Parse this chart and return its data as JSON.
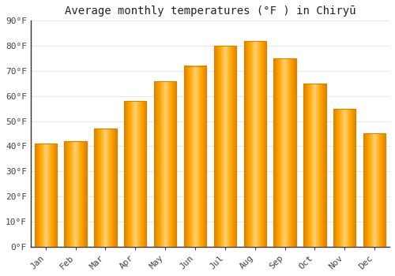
{
  "title": "Average monthly temperatures (°F ) in Chiryū",
  "months": [
    "Jan",
    "Feb",
    "Mar",
    "Apr",
    "May",
    "Jun",
    "Jul",
    "Aug",
    "Sep",
    "Oct",
    "Nov",
    "Dec"
  ],
  "values": [
    41,
    42,
    47,
    58,
    66,
    72,
    80,
    82,
    75,
    65,
    55,
    45
  ],
  "bar_color_face": "#FFA500",
  "bar_color_light": "#FFD580",
  "bar_color_edge": "#CC8800",
  "background_color": "#ffffff",
  "plot_bg_color": "#ffffff",
  "grid_color": "#e8e8e8",
  "ylim": [
    0,
    90
  ],
  "yticks": [
    0,
    10,
    20,
    30,
    40,
    50,
    60,
    70,
    80,
    90
  ],
  "title_fontsize": 10,
  "tick_fontsize": 8,
  "bar_width": 0.75,
  "spine_color": "#333333"
}
